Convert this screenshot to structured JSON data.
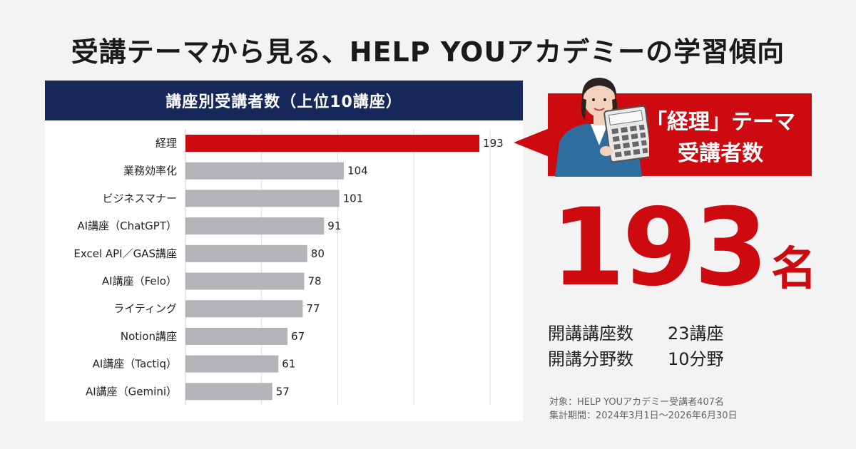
{
  "title": "受講テーマから見る、HELP YOUアカデミーの学習傾向",
  "chart_panel": {
    "header": "講座別受講者数（上位10講座）"
  },
  "chart_data": {
    "type": "bar",
    "orientation": "horizontal",
    "title": "講座別受講者数（上位10講座）",
    "categories": [
      "経理",
      "業務効率化",
      "ビジネスマナー",
      "AI講座（ChatGPT）",
      "Excel API／GAS講座",
      "AI講座（Felo）",
      "ライティング",
      "Notion講座",
      "AI講座（Tactiq）",
      "AI講座（Gemini）"
    ],
    "values": [
      193,
      104,
      101,
      91,
      80,
      78,
      77,
      67,
      61,
      57
    ],
    "highlight_index": 0,
    "xlim": [
      0,
      200
    ],
    "grid": true,
    "colors": {
      "highlight": "#cc0a10",
      "default": "#b4b3b8"
    }
  },
  "callout": {
    "line1": "「経理」テーマ",
    "line2": "受講者数"
  },
  "highlight": {
    "number": "193",
    "unit": "名"
  },
  "stats": [
    {
      "label": "開講講座数",
      "value": "23講座"
    },
    {
      "label": "開講分野数",
      "value": "10分野"
    }
  ],
  "footnote": {
    "line1": "対象：HELP YOUアカデミー受講者407名",
    "line2": "集計期間：2024年3月1日～2026年6月30日"
  },
  "colors": {
    "navy": "#16285a",
    "accent_red": "#cc0a10",
    "bar_gray": "#b4b3b8",
    "background": "#f3f3f3"
  }
}
